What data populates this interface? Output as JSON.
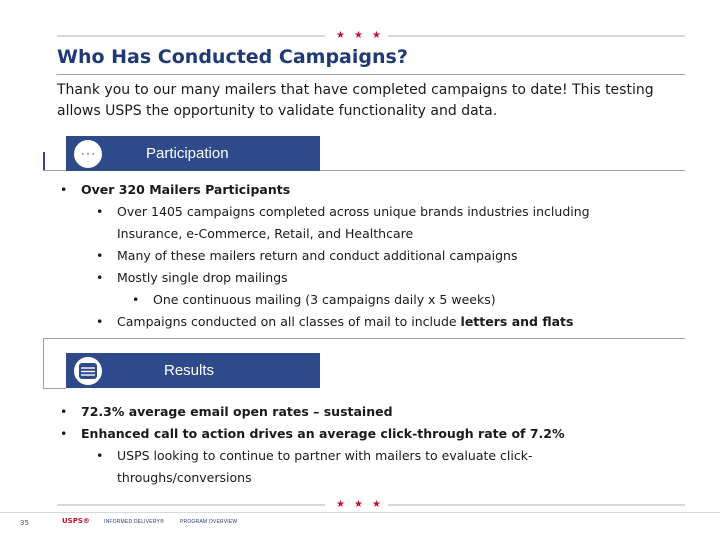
{
  "header": {
    "title": "Who Has Conducted Campaigns?",
    "intro": "Thank you to our many mailers that have completed campaigns to date! This testing allows USPS the opportunity to validate functionality and data."
  },
  "participation": {
    "heading": "Participation",
    "items": [
      {
        "level": 1,
        "text": "Over 320 Mailers Participants"
      },
      {
        "level": 2,
        "text": "Over 1405 campaigns completed across unique brands industries including"
      },
      {
        "level": 2,
        "text": "Insurance, e-Commerce, Retail, and Healthcare",
        "continuation": true
      },
      {
        "level": 2,
        "text": "Many of these mailers return and conduct additional campaigns"
      },
      {
        "level": 2,
        "text": "Mostly single drop mailings"
      },
      {
        "level": 3,
        "text": "One continuous mailing (3 campaigns daily x 5 weeks)"
      },
      {
        "level": 2,
        "text": "Campaigns conducted on all classes of mail to include ",
        "bold_tail": "letters and flats"
      }
    ]
  },
  "results": {
    "heading": "Results",
    "items": [
      {
        "level": 1,
        "text": "72.3% average email open rates – sustained"
      },
      {
        "level": 1,
        "text": "Enhanced call to action drives an average click-through rate of 7.2%"
      },
      {
        "level": 2,
        "text": "USPS looking to continue to partner with mailers to evaluate click-"
      },
      {
        "level": 2,
        "text": "throughs/conversions",
        "continuation": true
      }
    ]
  },
  "footer": {
    "page_number": "35",
    "brand": "USPS®",
    "program": "INFORMED DELIVERY®",
    "section": "PROGRAM OVERVIEW"
  },
  "colors": {
    "navy": "#2f4a8a",
    "title_blue": "#1f3a77",
    "accent_red": "#c8102e"
  },
  "icons": [
    "participation-icon",
    "results-icon",
    "star-icon"
  ],
  "bullet_glyph": "•"
}
